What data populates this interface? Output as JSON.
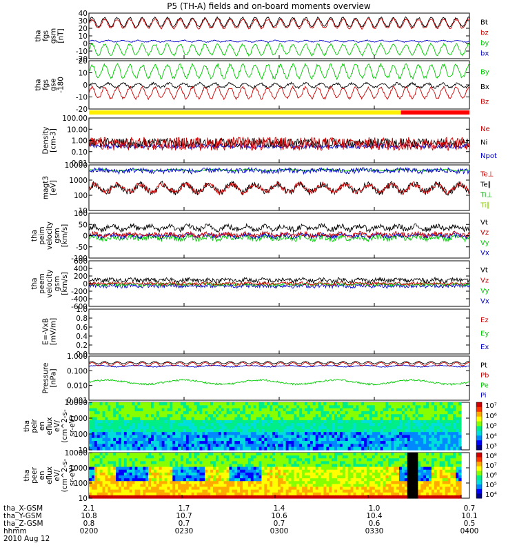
{
  "title": "P5 (TH-A) fields and on-board moments overview",
  "chart_data": [
    {
      "type": "line",
      "ylabel": [
        "tha",
        "fgs",
        "gsm",
        "[nT]"
      ],
      "yticks": [
        "40",
        "30",
        "20",
        "10",
        "0",
        "-10",
        "-20"
      ],
      "ylim": [
        -20,
        40
      ],
      "legend": [
        {
          "name": "Bt",
          "color": "#000000"
        },
        {
          "name": "bz",
          "color": "#cc0000"
        },
        {
          "name": "by",
          "color": "#00cc00"
        },
        {
          "name": "bx",
          "color": "#0000cc"
        }
      ],
      "series": [
        {
          "name": "Bt",
          "color": "#000000",
          "base": 28,
          "amp": 6,
          "noise": 1.2,
          "period": 0.033
        },
        {
          "name": "bz",
          "color": "#cc0000",
          "base": 26,
          "amp": 6,
          "noise": 1.2,
          "period": 0.033
        },
        {
          "name": "by",
          "color": "#00cc00",
          "base": -8,
          "amp": 7,
          "noise": 1.5,
          "period": 0.033
        },
        {
          "name": "bx",
          "color": "#0000cc",
          "base": 3,
          "amp": 1,
          "noise": 0.6,
          "period": 0.04
        }
      ]
    },
    {
      "type": "line",
      "ylabel": [
        "tha",
        "fgs",
        "gse",
        "-180"
      ],
      "yticks": [
        "20",
        "10",
        "0",
        "-10",
        "-20"
      ],
      "ylim": [
        -25,
        20
      ],
      "legend": [
        {
          "name": "By",
          "color": "#00cc00"
        },
        {
          "name": "Bx",
          "color": "#000000"
        },
        {
          "name": "Bz",
          "color": "#cc0000"
        }
      ],
      "series": [
        {
          "name": "By",
          "color": "#00cc00",
          "base": 10,
          "amp": 6,
          "noise": 1.5,
          "period": 0.033
        },
        {
          "name": "Bx",
          "color": "#000000",
          "base": -3,
          "amp": 2,
          "noise": 1.0,
          "period": 0.04
        },
        {
          "name": "Bz",
          "color": "#cc0000",
          "base": -10,
          "amp": 5,
          "noise": 1.2,
          "period": 0.033
        }
      ]
    },
    {
      "type": "bar",
      "mode_bar": [
        {
          "from": 0,
          "to": 0.82,
          "color": "#ffee00"
        },
        {
          "from": 0.82,
          "to": 1.0,
          "color": "#ff0000"
        }
      ]
    },
    {
      "type": "line",
      "log": true,
      "ylabel": [
        "Density",
        "[cm-3]"
      ],
      "yticks": [
        "100.00",
        "10.00",
        "1.00",
        "0.10",
        "0.01"
      ],
      "ylim": [
        0.01,
        100
      ],
      "legend": [
        {
          "name": "Ne",
          "color": "#cc0000"
        },
        {
          "name": "Ni",
          "color": "#000000"
        },
        {
          "name": "Npot",
          "color": "#0000cc"
        }
      ],
      "series": [
        {
          "name": "Npot",
          "color": "#0000cc",
          "base": 0.3,
          "amp": 0.4,
          "noise": 0.2,
          "period": 0.3
        },
        {
          "name": "Ni",
          "color": "#000000",
          "base": 0.6,
          "amp": 0.3,
          "noise": 0.4,
          "period": 0.05
        },
        {
          "name": "Ne",
          "color": "#cc0000",
          "base": 0.5,
          "amp": 0.3,
          "noise": 0.6,
          "period": 0.05
        }
      ]
    },
    {
      "type": "line",
      "log": true,
      "ylabel": [
        "magt3",
        "[eV]"
      ],
      "yticks": [
        "10000",
        "1000",
        "100",
        "10"
      ],
      "ylim": [
        3,
        10000
      ],
      "legend": [
        {
          "name": "Te⊥",
          "color": "#cc0000"
        },
        {
          "name": "Te∥",
          "color": "#000000"
        },
        {
          "name": "Ti⊥",
          "color": "#00aa00"
        },
        {
          "name": "Ti∥",
          "color": "#88cc00"
        }
      ],
      "series": [
        {
          "name": "Ti∥",
          "color": "#00cc00",
          "base": 3.6,
          "amp": 0.05,
          "noise": 0.05,
          "period": 0.1
        },
        {
          "name": "Ti⊥",
          "color": "#0000cc",
          "base": 3.55,
          "amp": 0.05,
          "noise": 0.2,
          "period": 0.1
        },
        {
          "name": "Te∥",
          "color": "#000000",
          "base": 2.2,
          "amp": 0.3,
          "noise": 0.25,
          "period": 0.06
        },
        {
          "name": "Te⊥",
          "color": "#cc0000",
          "base": 2.2,
          "amp": 0.3,
          "noise": 0.2,
          "period": 0.06
        }
      ]
    },
    {
      "type": "line",
      "ylabel": [
        "tha",
        "peim",
        "velocity",
        "gsm",
        "[km/s]"
      ],
      "yticks": [
        "100",
        "50",
        "0",
        "-50",
        "-100"
      ],
      "ylim": [
        -100,
        100
      ],
      "legend": [
        {
          "name": "Vt",
          "color": "#000000"
        },
        {
          "name": "Vz",
          "color": "#cc0000"
        },
        {
          "name": "Vy",
          "color": "#00cc00"
        },
        {
          "name": "Vx",
          "color": "#0000cc"
        }
      ],
      "series": [
        {
          "name": "Vy",
          "color": "#00cc00",
          "base": -10,
          "amp": 5,
          "noise": 12,
          "period": 0.05
        },
        {
          "name": "Vx",
          "color": "#0000cc",
          "base": 0,
          "amp": 5,
          "noise": 10,
          "period": 0.05
        },
        {
          "name": "Vz",
          "color": "#cc0000",
          "base": 5,
          "amp": 5,
          "noise": 10,
          "period": 0.05
        },
        {
          "name": "Vt",
          "color": "#000000",
          "base": 35,
          "amp": 8,
          "noise": 12,
          "period": 0.05
        }
      ]
    },
    {
      "type": "line",
      "ylabel": [
        "tha",
        "peem",
        "velocity",
        "gsm",
        "[km/s]"
      ],
      "yticks": [
        "600",
        "400",
        "200",
        "0",
        "-200",
        "-400",
        "-600"
      ],
      "ylim": [
        -600,
        600
      ],
      "legend": [
        {
          "name": "Vt",
          "color": "#000000"
        },
        {
          "name": "Vz",
          "color": "#cc0000"
        },
        {
          "name": "Vy",
          "color": "#00cc00"
        },
        {
          "name": "Vx",
          "color": "#0000cc"
        }
      ],
      "series": [
        {
          "name": "Vx",
          "color": "#0000cc",
          "base": -60,
          "amp": 10,
          "noise": 50,
          "period": 0.05
        },
        {
          "name": "Vy",
          "color": "#00cc00",
          "base": -20,
          "amp": 10,
          "noise": 40,
          "period": 0.05
        },
        {
          "name": "Vz",
          "color": "#cc0000",
          "base": 0,
          "amp": 10,
          "noise": 40,
          "period": 0.05
        },
        {
          "name": "Vt",
          "color": "#000000",
          "base": 90,
          "amp": 20,
          "noise": 55,
          "period": 0.05
        }
      ]
    },
    {
      "type": "line",
      "ylabel": [
        "E=-VxB",
        "[mV/m]"
      ],
      "yticks": [
        "1.0",
        "0.8",
        "0.6",
        "0.4",
        "0.2",
        "0.0"
      ],
      "ylim": [
        0,
        1
      ],
      "legend": [
        {
          "name": "Ez",
          "color": "#cc0000"
        },
        {
          "name": "Ey",
          "color": "#00cc00"
        },
        {
          "name": "Ex",
          "color": "#0000cc"
        }
      ],
      "series": []
    },
    {
      "type": "line",
      "log": true,
      "ylabel": [
        "Pressure",
        "[nPa]"
      ],
      "yticks": [
        "1.000",
        "0.100",
        "0.010",
        "0.001"
      ],
      "ylim": [
        0.001,
        1.5
      ],
      "legend": [
        {
          "name": "Pt",
          "color": "#000000"
        },
        {
          "name": "Pb",
          "color": "#cc0000"
        },
        {
          "name": "Pe",
          "color": "#00cc00"
        },
        {
          "name": "Pi",
          "color": "#0000cc"
        }
      ],
      "series": [
        {
          "name": "Pe",
          "color": "#00cc00",
          "base": -1.7,
          "amp": 0.15,
          "noise": 0.06,
          "period": 0.2
        },
        {
          "name": "Pi",
          "color": "#0000cc",
          "base": -0.55,
          "amp": 0.05,
          "noise": 0.03,
          "period": 0.1
        },
        {
          "name": "Pb",
          "color": "#cc0000",
          "base": -0.4,
          "amp": 0.12,
          "noise": 0.03,
          "period": 0.033
        },
        {
          "name": "Pt",
          "color": "#000000",
          "base": -0.3,
          "amp": 0.08,
          "noise": 0.02,
          "period": 0.033
        }
      ]
    },
    {
      "type": "heatmap",
      "ylabel": [
        "tha",
        "peir",
        "en",
        "eflux",
        "eV/",
        "(cm^2-s-",
        "sr-eV)"
      ],
      "yticks": [
        "10000",
        "1000",
        "100",
        "10"
      ],
      "colorbar": [
        "10⁷",
        "10⁶",
        "10⁵",
        "10⁴",
        "10³"
      ]
    },
    {
      "type": "heatmap",
      "ylabel": [
        "tha",
        "peer",
        "en",
        "eflux",
        "eV/",
        "(cm^2-s-",
        "sr-eV)"
      ],
      "yticks": [
        "10000",
        "1000",
        "100",
        "10"
      ],
      "colorbar": [
        "10⁸",
        "10⁷",
        "10⁶",
        "10⁵",
        "10⁴"
      ]
    }
  ],
  "ephemeris": {
    "labels": [
      "tha_X-GSM",
      "tha_Y-GSM",
      "tha_Z-GSM",
      "hhmm",
      "2010 Aug 12"
    ],
    "ticks": [
      {
        "x": "2.1",
        "y": "10.8",
        "z": "0.8",
        "t": "0200"
      },
      {
        "x": "1.7",
        "y": "10.7",
        "z": "0.7",
        "t": "0230"
      },
      {
        "x": "1.4",
        "y": "10.6",
        "z": "0.7",
        "t": "0300"
      },
      {
        "x": "1.0",
        "y": "10.4",
        "z": "0.6",
        "t": "0330"
      },
      {
        "x": "0.7",
        "y": "10.1",
        "z": "0.5",
        "t": "0400"
      }
    ]
  }
}
